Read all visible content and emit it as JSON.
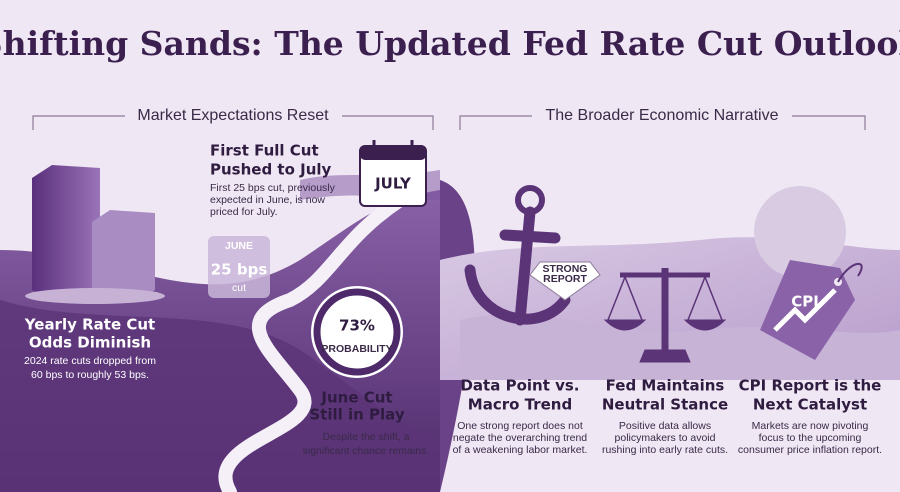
{
  "title": "Shifting Sands: The Updated Fed Rate Cut Outlook",
  "sections": [
    "Market Expectations Reset",
    "The Broader Economic Narrative"
  ],
  "left": {
    "first_cut": {
      "title_lines": [
        "First Full Cut",
        "Pushed to July"
      ],
      "body_lines": [
        "First 25 bps cut, previously",
        "expected in June, is now",
        "priced for July."
      ]
    },
    "calendar": "JULY",
    "june_tile": {
      "month": "JUNE",
      "value": "25 bps",
      "unit": "cut"
    },
    "yearly": {
      "title_lines": [
        "Yearly Rate Cut",
        "Odds Diminish"
      ],
      "body_lines": [
        "2024 rate cuts dropped from",
        "60 bps to roughly 53 bps."
      ]
    },
    "probability": {
      "value": "73%",
      "label": "PROBABILITY"
    },
    "june_cut": {
      "title_lines": [
        "June Cut",
        "Still in Play"
      ],
      "body_lines": [
        "Despite the shift, a",
        "significant chance remains."
      ]
    }
  },
  "right": {
    "badge_lines": [
      "STRONG",
      "REPORT"
    ],
    "tag": "CPI",
    "items": [
      {
        "title_lines": [
          "Data Point vs.",
          "Macro Trend"
        ],
        "body_lines": [
          "One strong report does not",
          "negate the overarching trend",
          "of a weakening labor market."
        ]
      },
      {
        "title_lines": [
          "Fed Maintains",
          "Neutral Stance"
        ],
        "body_lines": [
          "Positive data allows",
          "policymakers to avoid",
          "rushing into early rate cuts."
        ]
      },
      {
        "title_lines": [
          "CPI Report is the",
          "Next Catalyst"
        ],
        "body_lines": [
          "Markets are now pivoting",
          "focus to the upcoming",
          "consumer price inflation report."
        ]
      }
    ]
  }
}
